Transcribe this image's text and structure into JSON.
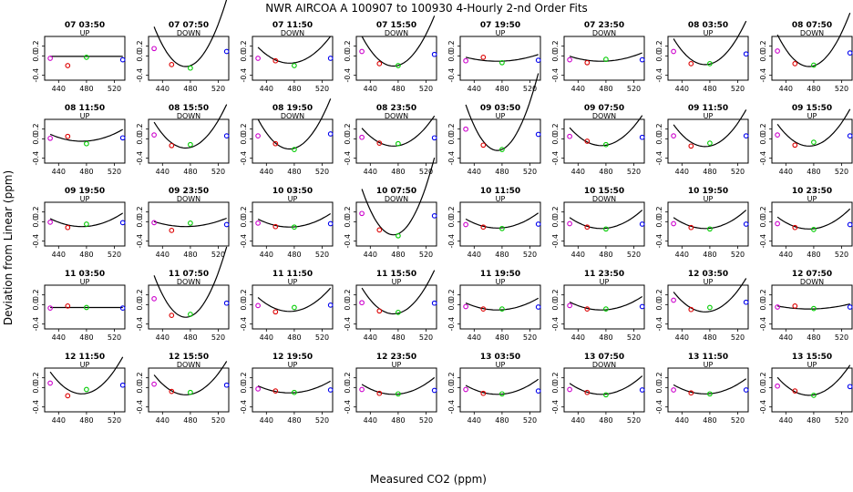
{
  "chart_data": {
    "type": "scatter",
    "title": "NWR   AIRCOA A   100907 to 100930   4-Hourly 2-nd Order Fits",
    "xlabel": "Measured CO2 (ppm)",
    "ylabel": "Deviation from Linear (ppm)",
    "xlim": [
      420,
      535
    ],
    "ylim": [
      -0.5,
      0.4
    ],
    "xticks": [
      440,
      480,
      520
    ],
    "yticks": [
      -0.4,
      0.0,
      0.2
    ],
    "ytick_labels": [
      "-0.4",
      "0.0",
      "0.2"
    ],
    "standard_x": [
      428,
      453,
      480,
      532
    ],
    "point_colors": [
      "#cc00cc",
      "#dd0000",
      "#00cc00",
      "#0000ee"
    ],
    "curve_color": "#000000",
    "grid": false,
    "panels": [
      {
        "label": "07 03:50",
        "dir": "UP",
        "values": [
          -0.05,
          -0.2,
          -0.03,
          -0.08
        ],
        "fit": [
          -0.01,
          0,
          0
        ]
      },
      {
        "label": "07 07:50",
        "dir": "DOWN",
        "values": [
          0.15,
          -0.18,
          -0.25,
          0.09
        ],
        "fit": [
          -0.22,
          0,
          4.0
        ]
      },
      {
        "label": "07 11:50",
        "dir": "DOWN",
        "values": [
          -0.05,
          -0.1,
          -0.2,
          -0.05
        ],
        "fit": [
          -0.15,
          0,
          1.6
        ]
      },
      {
        "label": "07 15:50",
        "dir": "DOWN",
        "values": [
          0.09,
          -0.16,
          -0.2,
          0.03
        ],
        "fit": [
          -0.21,
          0,
          3.0
        ]
      },
      {
        "label": "07 19:50",
        "dir": "UP",
        "values": [
          -0.1,
          -0.03,
          -0.14,
          -0.09
        ],
        "fit": [
          -0.11,
          0,
          0.4
        ]
      },
      {
        "label": "07 23:50",
        "dir": "DOWN",
        "values": [
          -0.08,
          -0.14,
          -0.07,
          -0.08
        ],
        "fit": [
          -0.11,
          0,
          0.5
        ]
      },
      {
        "label": "08 03:50",
        "dir": "UP",
        "values": [
          0.09,
          -0.16,
          -0.16,
          0.04
        ],
        "fit": [
          -0.18,
          0,
          2.6
        ]
      },
      {
        "label": "08 07:50",
        "dir": "DOWN",
        "values": [
          0.1,
          -0.16,
          -0.19,
          0.06
        ],
        "fit": [
          -0.22,
          0,
          3.2
        ]
      },
      {
        "label": "08 11:50",
        "dir": "UP",
        "values": [
          0.01,
          0.05,
          -0.1,
          0.02
        ],
        "fit": [
          -0.05,
          0,
          0.7
        ]
      },
      {
        "label": "08 15:50",
        "dir": "DOWN",
        "values": [
          0.08,
          -0.14,
          -0.12,
          0.06
        ],
        "fit": [
          -0.19,
          0,
          2.6
        ]
      },
      {
        "label": "08 19:50",
        "dir": "DOWN",
        "values": [
          0.06,
          -0.1,
          -0.22,
          0.1
        ],
        "fit": [
          -0.21,
          0,
          3.0
        ]
      },
      {
        "label": "08 23:50",
        "dir": "DOWN",
        "values": [
          0.03,
          -0.09,
          -0.1,
          0.02
        ],
        "fit": [
          -0.15,
          0,
          1.8
        ]
      },
      {
        "label": "09 03:50",
        "dir": "UP",
        "values": [
          0.2,
          -0.13,
          -0.22,
          0.09
        ],
        "fit": [
          -0.24,
          0,
          4.6
        ]
      },
      {
        "label": "09 07:50",
        "dir": "DOWN",
        "values": [
          0.05,
          -0.05,
          -0.12,
          0.03
        ],
        "fit": [
          -0.14,
          0,
          1.8
        ]
      },
      {
        "label": "09 11:50",
        "dir": "UP",
        "values": [
          0.06,
          -0.15,
          -0.09,
          0.06
        ],
        "fit": [
          -0.16,
          0,
          2.2
        ]
      },
      {
        "label": "09 15:50",
        "dir": "UP",
        "values": [
          0.08,
          -0.13,
          -0.07,
          0.06
        ],
        "fit": [
          -0.15,
          0,
          2.2
        ]
      },
      {
        "label": "09 19:50",
        "dir": "UP",
        "values": [
          -0.01,
          -0.12,
          -0.05,
          -0.02
        ],
        "fit": [
          -0.1,
          0,
          0.8
        ]
      },
      {
        "label": "09 23:50",
        "dir": "DOWN",
        "values": [
          -0.02,
          -0.18,
          -0.03,
          -0.06
        ],
        "fit": [
          -0.1,
          0,
          0.5
        ]
      },
      {
        "label": "10 03:50",
        "dir": "UP",
        "values": [
          -0.03,
          -0.1,
          -0.11,
          -0.04
        ],
        "fit": [
          -0.11,
          0,
          0.8
        ]
      },
      {
        "label": "10 07:50",
        "dir": "DOWN",
        "values": [
          0.17,
          -0.17,
          -0.29,
          0.12
        ],
        "fit": [
          -0.27,
          0,
          4.6
        ]
      },
      {
        "label": "10 11:50",
        "dir": "UP",
        "values": [
          -0.06,
          -0.11,
          -0.14,
          -0.05
        ],
        "fit": [
          -0.13,
          0,
          0.9
        ]
      },
      {
        "label": "10 15:50",
        "dir": "DOWN",
        "values": [
          -0.04,
          -0.11,
          -0.15,
          -0.05
        ],
        "fit": [
          -0.14,
          0,
          1.1
        ]
      },
      {
        "label": "10 19:50",
        "dir": "UP",
        "values": [
          -0.04,
          -0.12,
          -0.15,
          -0.05
        ],
        "fit": [
          -0.14,
          0,
          1.1
        ]
      },
      {
        "label": "10 23:50",
        "dir": "UP",
        "values": [
          -0.04,
          -0.12,
          -0.16,
          -0.06
        ],
        "fit": [
          -0.15,
          0,
          1.2
        ]
      },
      {
        "label": "11 03:50",
        "dir": "UP",
        "values": [
          -0.07,
          -0.03,
          -0.06,
          -0.07
        ],
        "fit": [
          -0.06,
          0,
          0
        ]
      },
      {
        "label": "11 07:50",
        "dir": "DOWN",
        "values": [
          0.12,
          -0.22,
          -0.2,
          0.03
        ],
        "fit": [
          -0.26,
          0,
          4.2
        ]
      },
      {
        "label": "11 11:50",
        "dir": "UP",
        "values": [
          -0.02,
          -0.15,
          -0.06,
          -0.01
        ],
        "fit": [
          -0.14,
          0,
          1.4
        ]
      },
      {
        "label": "11 15:50",
        "dir": "UP",
        "values": [
          0.04,
          -0.13,
          -0.16,
          0.03
        ],
        "fit": [
          -0.19,
          0,
          2.6
        ]
      },
      {
        "label": "11 19:50",
        "dir": "UP",
        "values": [
          -0.04,
          -0.09,
          -0.09,
          -0.05
        ],
        "fit": [
          -0.11,
          0,
          0.7
        ]
      },
      {
        "label": "11 23:50",
        "dir": "UP",
        "values": [
          -0.02,
          -0.09,
          -0.09,
          -0.04
        ],
        "fit": [
          -0.11,
          0,
          0.8
        ]
      },
      {
        "label": "12 03:50",
        "dir": "UP",
        "values": [
          0.09,
          -0.1,
          -0.06,
          0.05
        ],
        "fit": [
          -0.15,
          0,
          2.0
        ]
      },
      {
        "label": "12 07:50",
        "dir": "DOWN",
        "values": [
          -0.05,
          -0.03,
          -0.08,
          -0.05
        ],
        "fit": [
          -0.09,
          0,
          0.3
        ]
      },
      {
        "label": "12 11:50",
        "dir": "UP",
        "values": [
          0.09,
          -0.17,
          -0.04,
          0.05
        ],
        "fit": [
          -0.13,
          0,
          2.2
        ]
      },
      {
        "label": "12 15:50",
        "dir": "DOWN",
        "values": [
          0.07,
          -0.08,
          -0.1,
          0.05
        ],
        "fit": [
          -0.15,
          0,
          2.0
        ]
      },
      {
        "label": "12 19:50",
        "dir": "UP",
        "values": [
          -0.03,
          -0.07,
          -0.1,
          -0.05
        ],
        "fit": [
          -0.11,
          0,
          0.7
        ]
      },
      {
        "label": "12 23:50",
        "dir": "UP",
        "values": [
          -0.04,
          -0.12,
          -0.13,
          -0.06
        ],
        "fit": [
          -0.14,
          0,
          1.0
        ]
      },
      {
        "label": "13 03:50",
        "dir": "UP",
        "values": [
          -0.04,
          -0.12,
          -0.13,
          -0.07
        ],
        "fit": [
          -0.14,
          0,
          0.9
        ]
      },
      {
        "label": "13 07:50",
        "dir": "DOWN",
        "values": [
          -0.04,
          -0.1,
          -0.15,
          -0.05
        ],
        "fit": [
          -0.14,
          0,
          1.1
        ]
      },
      {
        "label": "13 11:50",
        "dir": "UP",
        "values": [
          -0.05,
          -0.11,
          -0.13,
          -0.05
        ],
        "fit": [
          -0.13,
          0,
          0.9
        ]
      },
      {
        "label": "13 15:50",
        "dir": "UP",
        "values": [
          0.03,
          -0.07,
          -0.16,
          0.02
        ],
        "fit": [
          -0.16,
          0,
          1.8
        ]
      }
    ]
  }
}
